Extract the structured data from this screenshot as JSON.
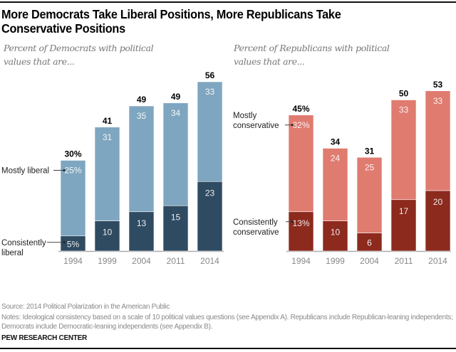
{
  "title": "More Democrats Take Liberal Positions, More Republicans Take Conservative Positions",
  "source": "Source: 2014 Political Polarization in the American Public",
  "notes": "Notes: Ideological consistency based on a scale of 10 political values questions (see Appendix A). Republicans include Republican-leaning independents; Democrats include Democratic-leaning independents (see Appendix B).",
  "org": "PEW RESEARCH CENTER",
  "chart_data": [
    {
      "type": "bar",
      "stacked": true,
      "subtitle": "Percent of Democrats with political values that are...",
      "categories": [
        "1994",
        "1999",
        "2004",
        "2011",
        "2014"
      ],
      "series": [
        {
          "name": "Consistently liberal",
          "values": [
            5,
            10,
            13,
            15,
            23
          ],
          "labels": [
            "5%",
            "10",
            "13",
            "15",
            "23"
          ],
          "color": "#2f4b62"
        },
        {
          "name": "Mostly liberal",
          "values": [
            25,
            31,
            35,
            34,
            33
          ],
          "labels": [
            "25%",
            "31",
            "35",
            "34",
            "33"
          ],
          "color": "#7fa6c0"
        }
      ],
      "totals": [
        30,
        41,
        49,
        49,
        56
      ],
      "total_labels": [
        "30%",
        "41",
        "49",
        "49",
        "56"
      ],
      "ylim": [
        0,
        56
      ],
      "series_labels": {
        "upper": "Mostly liberal",
        "lower": [
          "Consistently",
          "liberal"
        ]
      }
    },
    {
      "type": "bar",
      "stacked": true,
      "subtitle": "Percent of Republicans with political values that are...",
      "categories": [
        "1994",
        "1999",
        "2004",
        "2011",
        "2014"
      ],
      "series": [
        {
          "name": "Consistently conservative",
          "values": [
            13,
            10,
            6,
            17,
            20
          ],
          "labels": [
            "13%",
            "10",
            "6",
            "17",
            "20"
          ],
          "color": "#8c2a1e"
        },
        {
          "name": "Mostly conservative",
          "values": [
            32,
            24,
            25,
            33,
            33
          ],
          "labels": [
            "32%",
            "24",
            "25",
            "33",
            "33"
          ],
          "color": "#e07b70"
        }
      ],
      "totals": [
        45,
        34,
        31,
        50,
        53
      ],
      "total_labels": [
        "45%",
        "34",
        "31",
        "50",
        "53"
      ],
      "ylim": [
        0,
        56
      ],
      "series_labels": {
        "upper": [
          "Mostly",
          "conservative"
        ],
        "lower": [
          "Consistently",
          "conservative"
        ]
      }
    }
  ]
}
